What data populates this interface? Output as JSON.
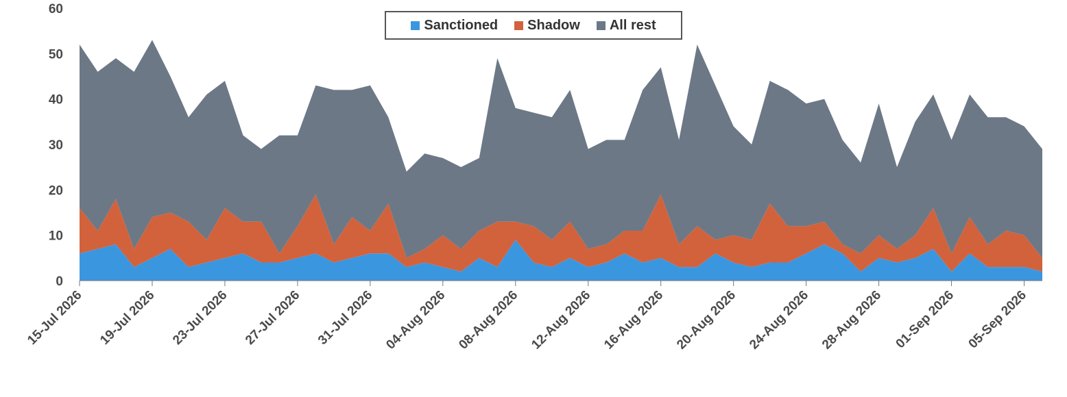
{
  "chart_data": {
    "type": "area",
    "stacked": true,
    "title": "",
    "xlabel": "",
    "ylabel": "",
    "ylim": [
      0,
      60
    ],
    "yticks": [
      0,
      10,
      20,
      30,
      40,
      50,
      60
    ],
    "grid": false,
    "legend_position": "top-center",
    "x_start": "2026-07-15",
    "x_end": "2026-09-07",
    "xtick_labels": [
      "15-Jul 2026",
      "19-Jul 2026",
      "23-Jul 2026",
      "27-Jul 2026",
      "31-Jul 2026",
      "04-Aug 2026",
      "08-Aug 2026",
      "12-Aug 2026",
      "16-Aug 2026",
      "20-Aug 2026",
      "24-Aug 2026",
      "28-Aug 2026",
      "01-Sep 2026",
      "05-Sep 2026"
    ],
    "series": [
      {
        "name": "Sanctioned",
        "color": "#3b96e0",
        "values": [
          6,
          7,
          8,
          3,
          5,
          7,
          3,
          4,
          5,
          6,
          4,
          4,
          5,
          6,
          4,
          5,
          6,
          6,
          3,
          4,
          3,
          2,
          5,
          3,
          9,
          4,
          3,
          5,
          3,
          4,
          6,
          4,
          5,
          3,
          3,
          6,
          4,
          3,
          4,
          4,
          6,
          8,
          6,
          2,
          5,
          4,
          5,
          7,
          2,
          6,
          3,
          3,
          3,
          2
        ]
      },
      {
        "name": "Shadow",
        "color": "#d2623c",
        "values": [
          10,
          4,
          10,
          4,
          9,
          8,
          10,
          5,
          11,
          7,
          9,
          2,
          7,
          13,
          4,
          9,
          5,
          11,
          2,
          3,
          7,
          5,
          6,
          10,
          4,
          8,
          6,
          8,
          4,
          4,
          5,
          7,
          14,
          5,
          9,
          3,
          6,
          6,
          13,
          8,
          6,
          5,
          2,
          4,
          5,
          3,
          5,
          9,
          4,
          8,
          5,
          8,
          7,
          3
        ]
      },
      {
        "name": "All rest",
        "color": "#6c7886",
        "values": [
          36,
          35,
          31,
          39,
          39,
          30,
          23,
          32,
          28,
          19,
          16,
          26,
          20,
          24,
          34,
          28,
          32,
          19,
          19,
          21,
          17,
          18,
          16,
          36,
          25,
          25,
          27,
          29,
          22,
          23,
          20,
          31,
          28,
          23,
          40,
          34,
          24,
          21,
          27,
          30,
          27,
          27,
          23,
          20,
          29,
          18,
          25,
          25,
          25,
          27,
          28,
          25,
          24,
          24
        ]
      }
    ]
  }
}
